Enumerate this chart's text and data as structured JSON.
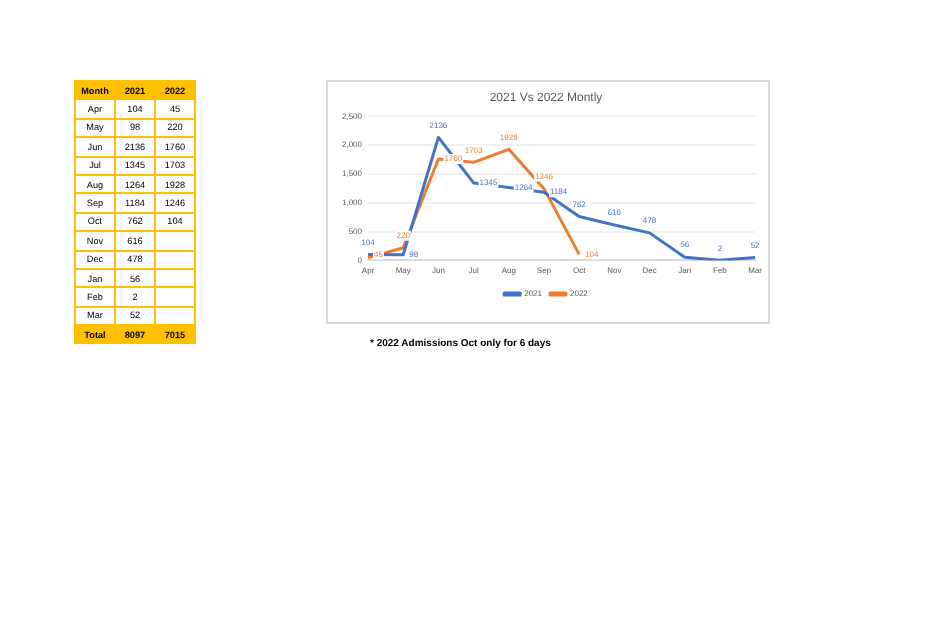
{
  "chart_data": [
    {
      "type": "other",
      "xlabel": "Month",
      "categories": [
        "Apr",
        "May",
        "Jun",
        "Jul",
        "Aug",
        "Sep",
        "Oct",
        "Nov",
        "Dec",
        "Jan",
        "Feb",
        "Mar"
      ],
      "series": [
        {
          "values": [
            104,
            98,
            2136,
            1345,
            1264,
            1184,
            762,
            616,
            478,
            56,
            2,
            52
          ]
        },
        {
          "values": [
            45,
            220,
            1760,
            1703,
            1928,
            1246,
            104,
            null,
            null,
            null,
            null,
            null
          ]
        }
      ],
      "data_labels": true,
      "annotations": [
        "2021",
        "2022",
        "Total",
        "8097",
        "7015"
      ]
    },
    {
      "type": "line",
      "title": "2021 Vs 2022 Montly",
      "categories": [
        "Apr",
        "May",
        "Jun",
        "Jul",
        "Aug",
        "Sep",
        "Oct",
        "Nov",
        "Dec",
        "Jan",
        "Feb",
        "Mar"
      ],
      "series": [
        {
          "name": "2021",
          "color": "#4472c4",
          "values": [
            104,
            98,
            2136,
            1345,
            1264,
            1184,
            762,
            616,
            478,
            56,
            2,
            52
          ]
        },
        {
          "name": "2022",
          "color": "#ed7d31",
          "values": [
            45,
            220,
            1760,
            1703,
            1928,
            1246,
            104,
            null,
            null,
            null,
            null,
            null
          ]
        }
      ],
      "ylim": [
        0,
        2500
      ],
      "yticks": [
        0,
        500,
        {
          "value": 1000,
          "label": "1,000"
        },
        {
          "value": 1500,
          "label": "1,500"
        },
        {
          "value": 2000,
          "label": "2,000"
        },
        {
          "value": 2500,
          "label": "2,500"
        }
      ],
      "grid": "y",
      "legend": "bottom",
      "marker": "none",
      "data_labels": true,
      "annotations": [
        "* 2022 Admissions Oct only for 6 days"
      ]
    }
  ]
}
